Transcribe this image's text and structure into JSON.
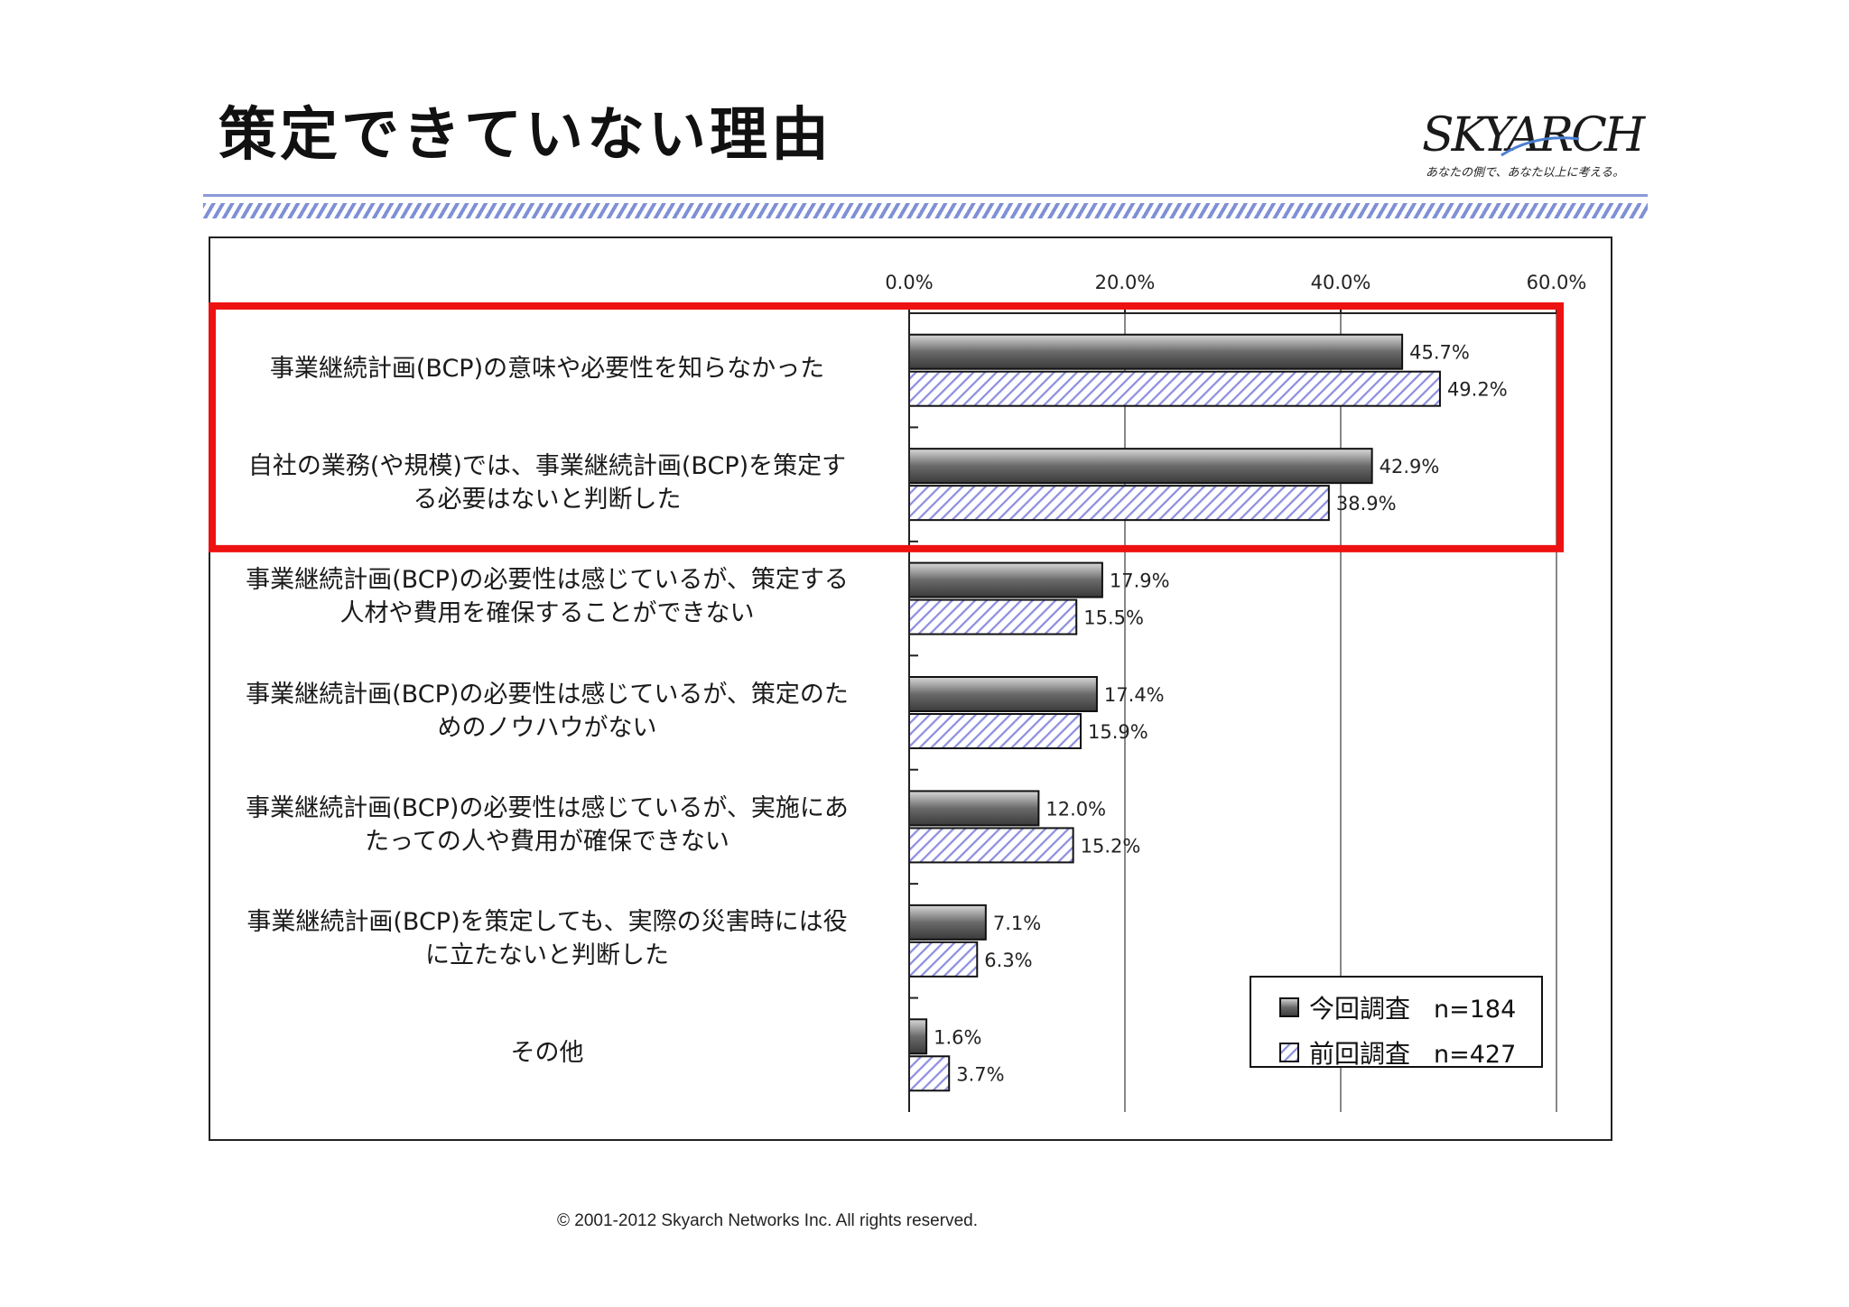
{
  "page": {
    "title": "策定できていない理由",
    "footer": "© 2001-2012 Skyarch Networks Inc. All rights reserved."
  },
  "logo": {
    "wordmark": "SKYARCH",
    "tagline": "あなたの側で、あなた以上に考える。"
  },
  "colors": {
    "current_fill": "#6f6f6f",
    "previous_hatch": "#8d8fe0",
    "highlight": "#ee1111",
    "rule": "#8a9ad8"
  },
  "chart_data": {
    "type": "bar",
    "orientation": "horizontal",
    "categories": [
      "事業継続計画(BCP)の意味や必要性を知らなかった",
      "自社の業務(や規模)では、事業継続計画(BCP)を策定する必要はないと判断した",
      "事業継続計画(BCP)の必要性は感じているが、策定する人材や費用を確保することができない",
      "事業継続計画(BCP)の必要性は感じているが、策定のためのノウハウがない",
      "事業継続計画(BCP)の必要性は感じているが、実施にあたっての人や費用が確保できない",
      "事業継続計画(BCP)を策定しても、実際の災害時には役に立たないと判断した",
      "その他"
    ],
    "category_lines": [
      [
        "事業継続計画(BCP)の意味や必要性を知らなかった"
      ],
      [
        "自社の業務(や規模)では、事業継続計画(BCP)を策定す",
        "る必要はないと判断した"
      ],
      [
        "事業継続計画(BCP)の必要性は感じているが、策定する",
        "人材や費用を確保することができない"
      ],
      [
        "事業継続計画(BCP)の必要性は感じているが、策定のた",
        "めのノウハウがない"
      ],
      [
        "事業継続計画(BCP)の必要性は感じているが、実施にあ",
        "たっての人や費用が確保できない"
      ],
      [
        "事業継続計画(BCP)を策定しても、実際の災害時には役",
        "に立たないと判断した"
      ],
      [
        "その他"
      ]
    ],
    "series": [
      {
        "name": "今回調査 n=184",
        "legend_label": "今回調査",
        "legend_n": "n=184",
        "values": [
          45.7,
          42.9,
          17.9,
          17.4,
          12.0,
          7.1,
          1.6
        ],
        "labels": [
          "45.7%",
          "42.9%",
          "17.9%",
          "17.4%",
          "12.0%",
          "7.1%",
          "1.6%"
        ]
      },
      {
        "name": "前回調査 n=427",
        "legend_label": "前回調査",
        "legend_n": "n=427",
        "values": [
          49.2,
          38.9,
          15.5,
          15.9,
          15.2,
          6.3,
          3.7
        ],
        "labels": [
          "49.2%",
          "38.9%",
          "15.5%",
          "15.9%",
          "15.2%",
          "6.3%",
          "3.7%"
        ]
      }
    ],
    "xlim": [
      0,
      60
    ],
    "xticks": [
      0,
      20,
      40,
      60
    ],
    "xtick_labels": [
      "0.0%",
      "20.0%",
      "40.0%",
      "60.0%"
    ],
    "axis_position": "top",
    "grid": true,
    "legend_position": "bottom-right",
    "highlighted_categories": [
      0,
      1
    ]
  }
}
